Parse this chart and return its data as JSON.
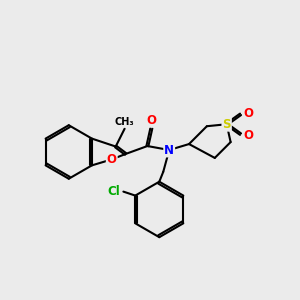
{
  "background_color": "#EBEBEB",
  "bond_color": "#000000",
  "bond_width": 1.5,
  "atom_colors": {
    "O": "#FF0000",
    "N": "#0000FF",
    "S": "#CCCC00",
    "Cl": "#00AA00",
    "C": "#000000"
  },
  "font_size": 8.5
}
